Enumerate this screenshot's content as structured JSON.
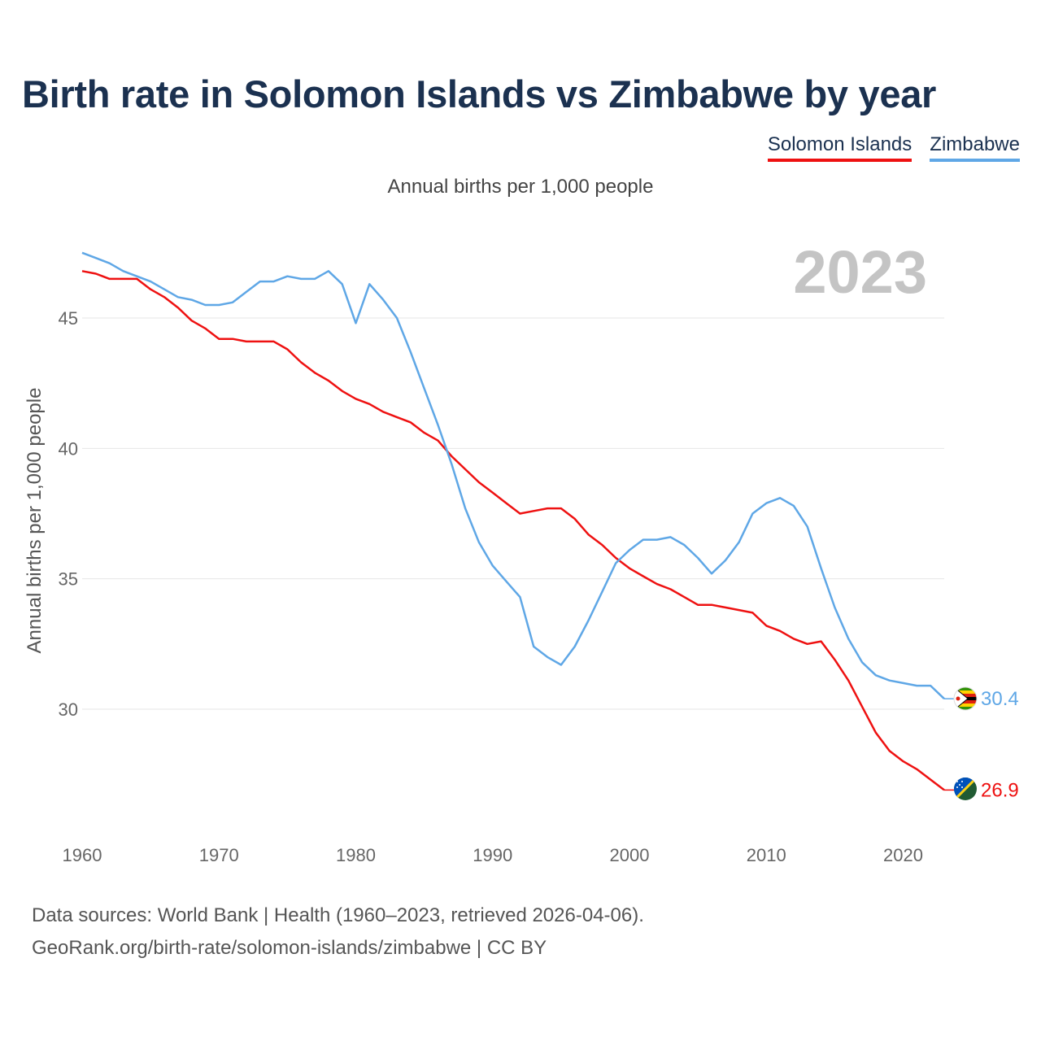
{
  "title": "Birth rate in Solomon Islands vs Zimbabwe by year",
  "subtitle": "Annual births per 1,000 people",
  "footer": {
    "line1": "Data sources: World Bank | Health (1960–2023, retrieved 2026-04-06).",
    "line2": "GeoRank.org/birth-rate/solomon-islands/zimbabwe | CC BY"
  },
  "legend": [
    {
      "label": "Solomon Islands",
      "color": "#ee1111"
    },
    {
      "label": "Zimbabwe",
      "color": "#5fa7e6"
    }
  ],
  "chart_data": {
    "type": "line",
    "title": "Birth rate in Solomon Islands vs Zimbabwe by year",
    "ylabel": "Annual births per 1,000 people",
    "xlabel": "",
    "year_label": "2023",
    "xlim": [
      1960,
      2023
    ],
    "ylim": [
      26,
      48
    ],
    "x_ticks": [
      1960,
      1970,
      1980,
      1990,
      2000,
      2010,
      2020
    ],
    "y_ticks": [
      30,
      35,
      40,
      45
    ],
    "grid": true,
    "x": [
      1960,
      1961,
      1962,
      1963,
      1964,
      1965,
      1966,
      1967,
      1968,
      1969,
      1970,
      1971,
      1972,
      1973,
      1974,
      1975,
      1976,
      1977,
      1978,
      1979,
      1980,
      1981,
      1982,
      1983,
      1984,
      1985,
      1986,
      1987,
      1988,
      1989,
      1990,
      1991,
      1992,
      1993,
      1994,
      1995,
      1996,
      1997,
      1998,
      1999,
      2000,
      2001,
      2002,
      2003,
      2004,
      2005,
      2006,
      2007,
      2008,
      2009,
      2010,
      2011,
      2012,
      2013,
      2014,
      2015,
      2016,
      2017,
      2018,
      2019,
      2020,
      2021,
      2022,
      2023
    ],
    "series": [
      {
        "name": "Solomon Islands",
        "color": "#ee1111",
        "end_label": "26.9",
        "values": [
          46.8,
          46.7,
          46.5,
          46.5,
          46.5,
          46.1,
          45.8,
          45.4,
          44.9,
          44.6,
          44.2,
          44.2,
          44.1,
          44.1,
          44.1,
          43.8,
          43.3,
          42.9,
          42.6,
          42.2,
          41.9,
          41.7,
          41.4,
          41.2,
          41.0,
          40.6,
          40.3,
          39.7,
          39.2,
          38.7,
          38.3,
          37.9,
          37.5,
          37.6,
          37.7,
          37.7,
          37.3,
          36.7,
          36.3,
          35.8,
          35.4,
          35.1,
          34.8,
          34.6,
          34.3,
          34.0,
          34.0,
          33.9,
          33.8,
          33.7,
          33.2,
          33.0,
          32.7,
          32.5,
          32.6,
          31.9,
          31.1,
          30.1,
          29.1,
          28.4,
          28.0,
          27.7,
          27.3,
          26.9
        ]
      },
      {
        "name": "Zimbabwe",
        "color": "#5fa7e6",
        "end_label": "30.4",
        "values": [
          47.5,
          47.3,
          47.1,
          46.8,
          46.6,
          46.4,
          46.1,
          45.8,
          45.7,
          45.5,
          45.5,
          45.6,
          46.0,
          46.4,
          46.4,
          46.6,
          46.5,
          46.5,
          46.8,
          46.3,
          44.8,
          46.3,
          45.7,
          45.0,
          43.7,
          42.3,
          40.9,
          39.4,
          37.7,
          36.4,
          35.5,
          34.9,
          34.3,
          32.4,
          32.0,
          31.7,
          32.4,
          33.4,
          34.5,
          35.6,
          36.1,
          36.5,
          36.5,
          36.6,
          36.3,
          35.8,
          35.2,
          35.7,
          36.4,
          37.5,
          37.9,
          38.1,
          37.8,
          37.0,
          35.4,
          33.9,
          32.7,
          31.8,
          31.3,
          31.1,
          31.0,
          30.9,
          30.9,
          30.4
        ]
      }
    ]
  }
}
